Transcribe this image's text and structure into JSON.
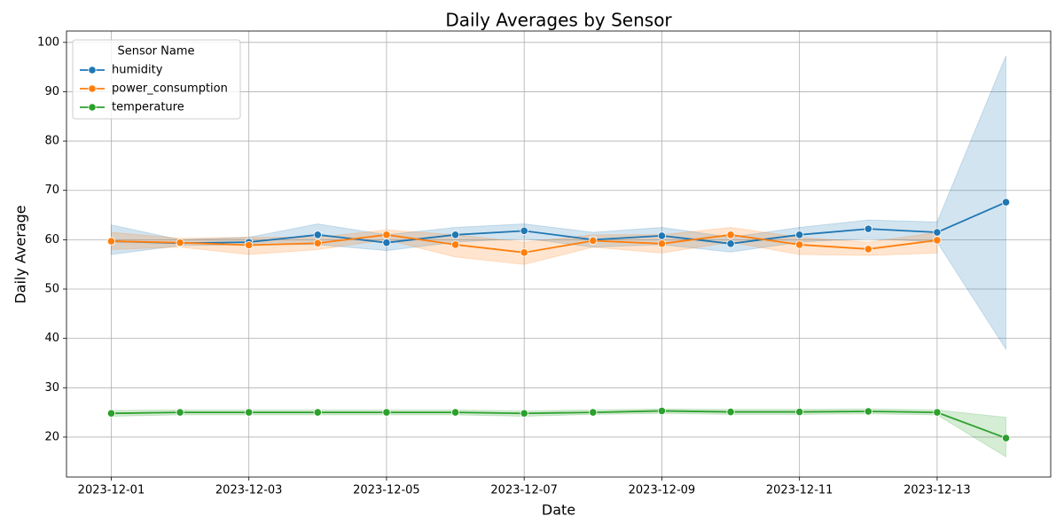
{
  "chart_data": {
    "type": "line",
    "title": "Daily Averages by Sensor",
    "x_label": "Date",
    "y_label": "Daily Average",
    "x": [
      "2023-12-01",
      "2023-12-02",
      "2023-12-03",
      "2023-12-04",
      "2023-12-05",
      "2023-12-06",
      "2023-12-07",
      "2023-12-08",
      "2023-12-09",
      "2023-12-10",
      "2023-12-11",
      "2023-12-12",
      "2023-12-13",
      "2023-12-14"
    ],
    "xlim": [
      "2023-12-01",
      "2023-12-14"
    ],
    "xticks": [
      "2023-12-01",
      "2023-12-03",
      "2023-12-05",
      "2023-12-07",
      "2023-12-09",
      "2023-12-11",
      "2023-12-13"
    ],
    "ylim": [
      11.9,
      102.3
    ],
    "yticks": [
      20,
      30,
      40,
      50,
      60,
      70,
      80,
      90,
      100
    ],
    "grid": true,
    "legend_title": "Sensor Name",
    "legend": "upper left",
    "series": [
      {
        "name": "humidity",
        "color": "#1f77b4",
        "values": [
          59.7,
          59.3,
          59.5,
          61.0,
          59.4,
          61.0,
          61.8,
          60.0,
          60.8,
          59.2,
          61.0,
          62.2,
          61.5,
          67.6
        ],
        "lower": [
          57.0,
          58.8,
          59.0,
          59.0,
          57.8,
          59.5,
          60.3,
          58.5,
          59.0,
          57.5,
          59.5,
          60.3,
          59.5,
          37.8
        ],
        "upper": [
          63.0,
          60.0,
          60.5,
          63.2,
          61.0,
          62.5,
          63.2,
          61.5,
          62.5,
          60.5,
          62.5,
          64.0,
          63.6,
          97.3
        ]
      },
      {
        "name": "power_consumption",
        "color": "#ff7f0e",
        "values": [
          59.7,
          59.4,
          58.9,
          59.3,
          61.0,
          59.0,
          57.4,
          59.8,
          59.2,
          61.0,
          59.0,
          58.1,
          59.9,
          null
        ],
        "lower": [
          58.0,
          58.5,
          57.0,
          58.0,
          60.0,
          56.5,
          55.0,
          58.5,
          57.3,
          59.5,
          57.0,
          56.8,
          57.3,
          null
        ],
        "upper": [
          61.5,
          60.3,
          60.5,
          60.5,
          62.0,
          61.0,
          59.5,
          61.0,
          61.0,
          62.5,
          60.5,
          59.5,
          61.5,
          null
        ]
      },
      {
        "name": "temperature",
        "color": "#2ca02c",
        "values": [
          24.8,
          25.0,
          25.0,
          25.0,
          25.0,
          25.0,
          24.8,
          25.0,
          25.3,
          25.1,
          25.1,
          25.2,
          25.0,
          19.8
        ],
        "lower": [
          24.2,
          24.5,
          24.5,
          24.5,
          24.5,
          24.5,
          24.2,
          24.6,
          24.8,
          24.6,
          24.6,
          24.7,
          24.5,
          16.0
        ],
        "upper": [
          25.4,
          25.5,
          25.5,
          25.5,
          25.5,
          25.5,
          25.3,
          25.5,
          25.7,
          25.6,
          25.6,
          25.7,
          25.5,
          24.0
        ]
      }
    ]
  }
}
